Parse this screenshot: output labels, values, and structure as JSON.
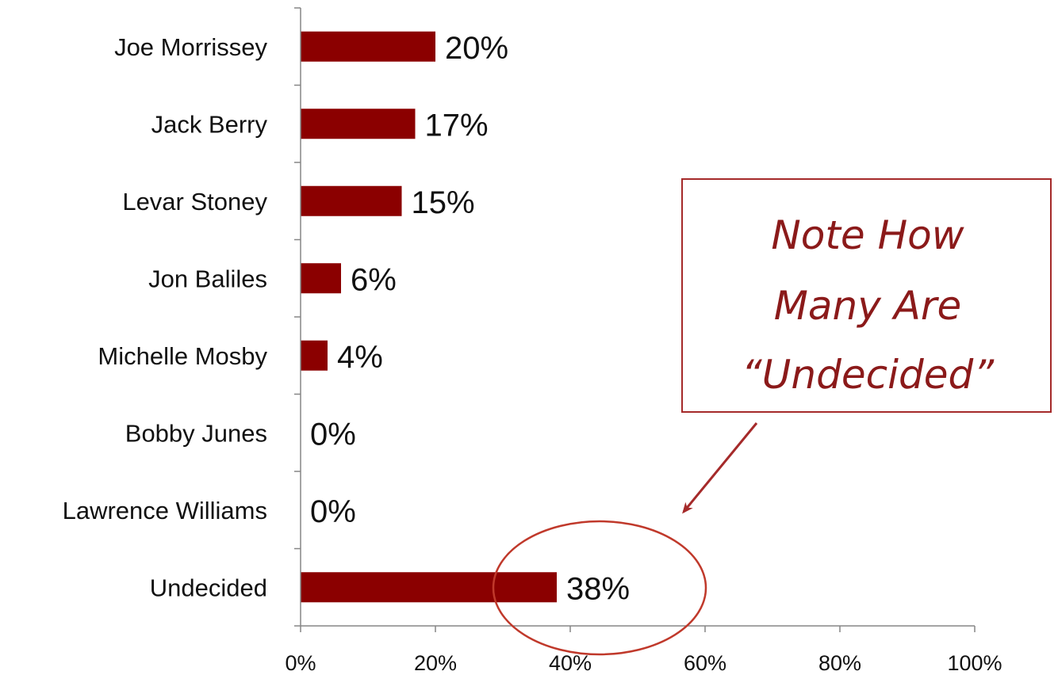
{
  "chart_data": {
    "type": "bar",
    "orientation": "horizontal",
    "categories": [
      "Joe Morrissey",
      "Jack Berry",
      "Levar Stoney",
      "Jon Baliles",
      "Michelle Mosby",
      "Bobby Junes",
      "Lawrence Williams",
      "Undecided"
    ],
    "values": [
      20,
      17,
      15,
      6,
      4,
      0,
      0,
      38
    ],
    "data_labels": [
      "20%",
      "17%",
      "15%",
      "6%",
      "4%",
      "0%",
      "0%",
      "38%"
    ],
    "xlim": [
      0,
      100
    ],
    "x_ticks": [
      0,
      20,
      40,
      60,
      80,
      100
    ],
    "x_tick_labels": [
      "0%",
      "20%",
      "40%",
      "60%",
      "80%",
      "100%"
    ],
    "bar_color": "#8b0000",
    "grid": false,
    "legend": "none",
    "annotation": {
      "lines": [
        "Note How",
        "Many Are",
        "“Undecided”"
      ],
      "color": "#8b1a1a",
      "highlight_category": "Undecided"
    }
  }
}
